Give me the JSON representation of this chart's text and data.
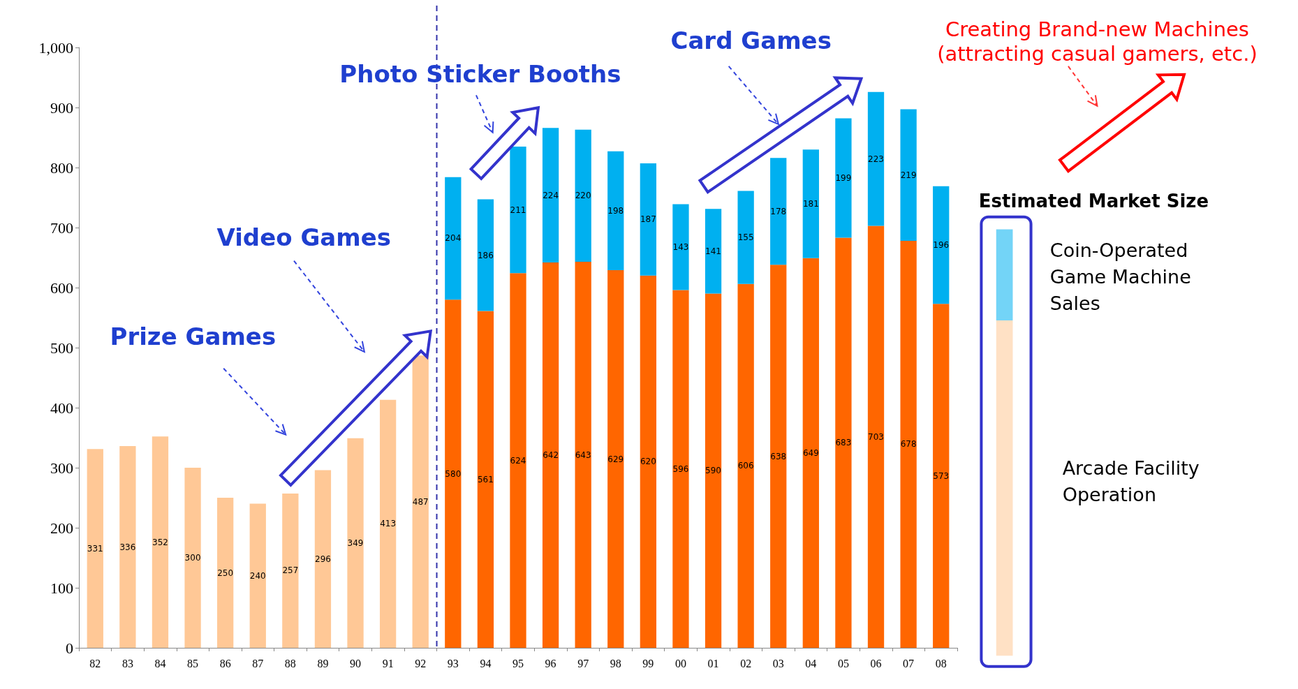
{
  "chart_data": {
    "type": "bar",
    "stacked": true,
    "data_labels": true,
    "legend": "right",
    "legend_title": "Estimated Market Size",
    "categories": [
      "82",
      "83",
      "84",
      "85",
      "86",
      "87",
      "88",
      "89",
      "90",
      "91",
      "92",
      "93",
      "94",
      "95",
      "96",
      "97",
      "98",
      "99",
      "00",
      "01",
      "02",
      "03",
      "04",
      "05",
      "06",
      "07",
      "08"
    ],
    "series": [
      {
        "name": "Arcade Facility Operation",
        "color": "#ffc896",
        "values": [
          331,
          336,
          352,
          300,
          250,
          240,
          257,
          296,
          349,
          413,
          487,
          null,
          null,
          null,
          null,
          null,
          null,
          null,
          null,
          null,
          null,
          null,
          null,
          null,
          null,
          null,
          null
        ]
      },
      {
        "color": "#ff6600",
        "values": [
          null,
          null,
          null,
          null,
          null,
          null,
          null,
          null,
          null,
          null,
          null,
          580,
          561,
          624,
          642,
          643,
          629,
          620,
          596,
          590,
          606,
          638,
          649,
          683,
          703,
          678,
          573
        ]
      },
      {
        "name": "Coin-Operated Game Machine Sales",
        "color": "#00b0f0",
        "values": [
          null,
          null,
          null,
          null,
          null,
          null,
          null,
          null,
          null,
          null,
          null,
          204,
          186,
          211,
          224,
          220,
          198,
          187,
          143,
          141,
          155,
          178,
          181,
          199,
          223,
          219,
          196
        ]
      }
    ],
    "ylim": [
      0,
      1000
    ],
    "yticks": [
      0,
      100,
      200,
      300,
      400,
      500,
      600,
      700,
      800,
      900,
      {
        "value": 1000,
        "label": "1,000"
      }
    ],
    "grid": false,
    "ref_lines": [
      {
        "axis": "x",
        "value": "93",
        "color": "#3333aa",
        "line_style": "dashed"
      }
    ],
    "annotations": [
      "Prize Games",
      "Video Games",
      "Photo Sticker Booths",
      "Card Games",
      "Creating Brand-new Machines (attracting casual gamers, etc.)"
    ]
  }
}
